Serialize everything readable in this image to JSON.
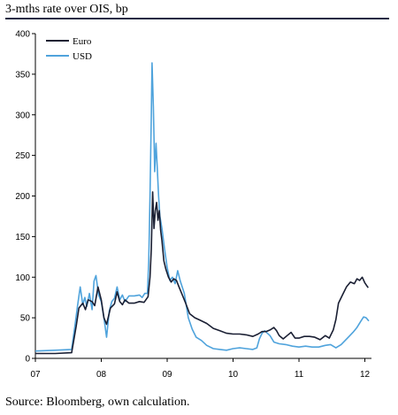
{
  "header": {
    "title": "3-mths rate over OIS, bp"
  },
  "footer": {
    "source": "Source: Bloomberg, own calculation."
  },
  "chart_data": {
    "type": "line",
    "title": "3-mths rate over OIS, bp",
    "xlabel": "",
    "ylabel": "",
    "xlim": [
      2007.0,
      2012.1
    ],
    "ylim": [
      0,
      400
    ],
    "y_ticks": [
      0,
      50,
      100,
      150,
      200,
      250,
      300,
      350,
      400
    ],
    "x_ticks": [
      {
        "label": "07",
        "value": 2007.0
      },
      {
        "label": "08",
        "value": 2008.0
      },
      {
        "label": "09",
        "value": 2009.0
      },
      {
        "label": "10",
        "value": 2010.0
      },
      {
        "label": "11",
        "value": 2011.0
      },
      {
        "label": "12",
        "value": 2012.0
      }
    ],
    "grid": false,
    "legend": "top-left",
    "series": [
      {
        "name": "Euro",
        "color": "#1a1f33",
        "points": [
          [
            2007.0,
            6
          ],
          [
            2007.3,
            6
          ],
          [
            2007.55,
            7
          ],
          [
            2007.62,
            40
          ],
          [
            2007.66,
            62
          ],
          [
            2007.72,
            68
          ],
          [
            2007.76,
            60
          ],
          [
            2007.8,
            72
          ],
          [
            2007.86,
            70
          ],
          [
            2007.9,
            65
          ],
          [
            2007.95,
            88
          ],
          [
            2008.0,
            72
          ],
          [
            2008.04,
            50
          ],
          [
            2008.08,
            42
          ],
          [
            2008.14,
            62
          ],
          [
            2008.2,
            67
          ],
          [
            2008.24,
            82
          ],
          [
            2008.28,
            70
          ],
          [
            2008.32,
            66
          ],
          [
            2008.36,
            72
          ],
          [
            2008.42,
            68
          ],
          [
            2008.5,
            68
          ],
          [
            2008.58,
            70
          ],
          [
            2008.65,
            69
          ],
          [
            2008.71,
            76
          ],
          [
            2008.74,
            100
          ],
          [
            2008.76,
            135
          ],
          [
            2008.78,
            205
          ],
          [
            2008.8,
            160
          ],
          [
            2008.82,
            182
          ],
          [
            2008.84,
            192
          ],
          [
            2008.86,
            170
          ],
          [
            2008.88,
            182
          ],
          [
            2008.9,
            158
          ],
          [
            2008.92,
            145
          ],
          [
            2008.95,
            120
          ],
          [
            2008.98,
            110
          ],
          [
            2009.02,
            100
          ],
          [
            2009.06,
            94
          ],
          [
            2009.1,
            98
          ],
          [
            2009.14,
            96
          ],
          [
            2009.18,
            88
          ],
          [
            2009.22,
            80
          ],
          [
            2009.28,
            68
          ],
          [
            2009.34,
            55
          ],
          [
            2009.42,
            50
          ],
          [
            2009.5,
            47
          ],
          [
            2009.6,
            43
          ],
          [
            2009.7,
            37
          ],
          [
            2009.8,
            34
          ],
          [
            2009.9,
            31
          ],
          [
            2010.0,
            30
          ],
          [
            2010.1,
            30
          ],
          [
            2010.2,
            29
          ],
          [
            2010.3,
            27
          ],
          [
            2010.38,
            30
          ],
          [
            2010.44,
            33
          ],
          [
            2010.5,
            33
          ],
          [
            2010.56,
            35
          ],
          [
            2010.62,
            38
          ],
          [
            2010.66,
            34
          ],
          [
            2010.7,
            28
          ],
          [
            2010.76,
            24
          ],
          [
            2010.82,
            28
          ],
          [
            2010.88,
            32
          ],
          [
            2010.94,
            25
          ],
          [
            2011.0,
            25
          ],
          [
            2011.08,
            27
          ],
          [
            2011.16,
            27
          ],
          [
            2011.24,
            26
          ],
          [
            2011.32,
            23
          ],
          [
            2011.4,
            28
          ],
          [
            2011.46,
            25
          ],
          [
            2011.52,
            35
          ],
          [
            2011.56,
            48
          ],
          [
            2011.6,
            68
          ],
          [
            2011.66,
            78
          ],
          [
            2011.72,
            88
          ],
          [
            2011.78,
            94
          ],
          [
            2011.84,
            92
          ],
          [
            2011.88,
            98
          ],
          [
            2011.92,
            96
          ],
          [
            2011.96,
            100
          ],
          [
            2012.0,
            93
          ],
          [
            2012.05,
            87
          ]
        ]
      },
      {
        "name": "USD",
        "color": "#4fa3dc",
        "points": [
          [
            2007.0,
            9
          ],
          [
            2007.3,
            10
          ],
          [
            2007.55,
            11
          ],
          [
            2007.6,
            40
          ],
          [
            2007.64,
            65
          ],
          [
            2007.68,
            88
          ],
          [
            2007.72,
            66
          ],
          [
            2007.75,
            75
          ],
          [
            2007.78,
            64
          ],
          [
            2007.82,
            80
          ],
          [
            2007.86,
            60
          ],
          [
            2007.89,
            95
          ],
          [
            2007.92,
            102
          ],
          [
            2007.96,
            78
          ],
          [
            2008.0,
            70
          ],
          [
            2008.04,
            50
          ],
          [
            2008.08,
            26
          ],
          [
            2008.12,
            58
          ],
          [
            2008.16,
            70
          ],
          [
            2008.2,
            74
          ],
          [
            2008.24,
            88
          ],
          [
            2008.28,
            72
          ],
          [
            2008.32,
            78
          ],
          [
            2008.36,
            70
          ],
          [
            2008.42,
            77
          ],
          [
            2008.5,
            77
          ],
          [
            2008.58,
            78
          ],
          [
            2008.62,
            75
          ],
          [
            2008.66,
            80
          ],
          [
            2008.7,
            80
          ],
          [
            2008.72,
            120
          ],
          [
            2008.74,
            200
          ],
          [
            2008.76,
            300
          ],
          [
            2008.77,
            364
          ],
          [
            2008.79,
            310
          ],
          [
            2008.81,
            230
          ],
          [
            2008.83,
            265
          ],
          [
            2008.85,
            235
          ],
          [
            2008.87,
            200
          ],
          [
            2008.89,
            175
          ],
          [
            2008.92,
            160
          ],
          [
            2008.96,
            135
          ],
          [
            2009.0,
            112
          ],
          [
            2009.04,
            96
          ],
          [
            2009.08,
            100
          ],
          [
            2009.12,
            92
          ],
          [
            2009.16,
            108
          ],
          [
            2009.2,
            95
          ],
          [
            2009.26,
            80
          ],
          [
            2009.32,
            50
          ],
          [
            2009.38,
            36
          ],
          [
            2009.44,
            26
          ],
          [
            2009.52,
            22
          ],
          [
            2009.6,
            16
          ],
          [
            2009.7,
            12
          ],
          [
            2009.8,
            11
          ],
          [
            2009.9,
            10
          ],
          [
            2010.0,
            12
          ],
          [
            2010.1,
            13
          ],
          [
            2010.2,
            12
          ],
          [
            2010.3,
            11
          ],
          [
            2010.36,
            13
          ],
          [
            2010.4,
            24
          ],
          [
            2010.44,
            31
          ],
          [
            2010.48,
            34
          ],
          [
            2010.52,
            31
          ],
          [
            2010.56,
            28
          ],
          [
            2010.62,
            20
          ],
          [
            2010.7,
            18
          ],
          [
            2010.8,
            17
          ],
          [
            2010.9,
            15
          ],
          [
            2011.0,
            14
          ],
          [
            2011.1,
            15
          ],
          [
            2011.2,
            14
          ],
          [
            2011.3,
            14
          ],
          [
            2011.4,
            16
          ],
          [
            2011.48,
            17
          ],
          [
            2011.56,
            13
          ],
          [
            2011.64,
            17
          ],
          [
            2011.7,
            22
          ],
          [
            2011.76,
            27
          ],
          [
            2011.82,
            32
          ],
          [
            2011.88,
            38
          ],
          [
            2011.94,
            46
          ],
          [
            2011.98,
            51
          ],
          [
            2012.02,
            50
          ],
          [
            2012.06,
            46
          ]
        ]
      }
    ]
  }
}
